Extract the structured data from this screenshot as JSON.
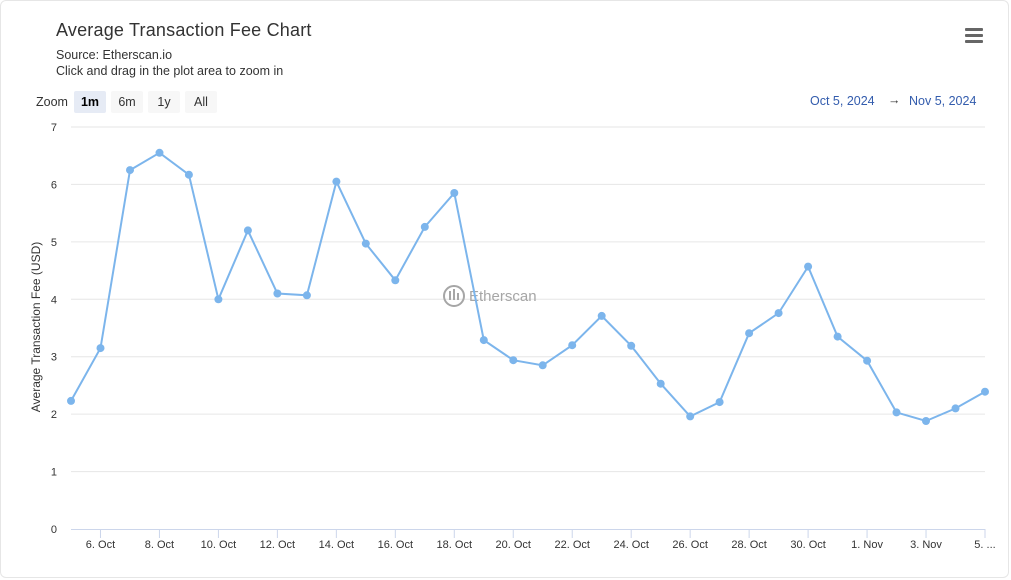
{
  "header": {
    "title": "Average Transaction Fee Chart",
    "source": "Source: Etherscan.io",
    "hint": "Click and drag in the plot area to zoom in"
  },
  "menu_icon": "hamburger-menu-icon",
  "zoom": {
    "label": "Zoom",
    "buttons": [
      "1m",
      "6m",
      "1y",
      "All"
    ],
    "active": "1m"
  },
  "range": {
    "from": "Oct 5, 2024",
    "arrow": "→",
    "to": "Nov 5, 2024"
  },
  "watermark": "Etherscan",
  "colors": {
    "line": "#7cb5ec",
    "grid": "#e6e6e6",
    "range_text": "#335cad"
  },
  "chart_data": {
    "type": "line",
    "ylabel": "Average Transaction Fee (USD)",
    "ylim": [
      0,
      7
    ],
    "yticks": [
      0,
      1,
      2,
      3,
      4,
      5,
      6,
      7
    ],
    "grid": true,
    "xlim": [
      "2024-10-05",
      "2024-11-05"
    ],
    "xtick_labels": [
      "6. Oct",
      "8. Oct",
      "10. Oct",
      "12. Oct",
      "14. Oct",
      "16. Oct",
      "18. Oct",
      "20. Oct",
      "22. Oct",
      "24. Oct",
      "26. Oct",
      "28. Oct",
      "30. Oct",
      "1. Nov",
      "3. Nov",
      "5. ..."
    ],
    "xtick_dates": [
      "2024-10-06",
      "2024-10-08",
      "2024-10-10",
      "2024-10-12",
      "2024-10-14",
      "2024-10-16",
      "2024-10-18",
      "2024-10-20",
      "2024-10-22",
      "2024-10-24",
      "2024-10-26",
      "2024-10-28",
      "2024-10-30",
      "2024-11-01",
      "2024-11-03",
      "2024-11-05"
    ],
    "series": [
      {
        "x": [
          "2024-10-05",
          "2024-10-06",
          "2024-10-07",
          "2024-10-08",
          "2024-10-09",
          "2024-10-10",
          "2024-10-11",
          "2024-10-12",
          "2024-10-13",
          "2024-10-14",
          "2024-10-15",
          "2024-10-16",
          "2024-10-17",
          "2024-10-18",
          "2024-10-19",
          "2024-10-20",
          "2024-10-21",
          "2024-10-22",
          "2024-10-23",
          "2024-10-24",
          "2024-10-25",
          "2024-10-26",
          "2024-10-27",
          "2024-10-28",
          "2024-10-29",
          "2024-10-30",
          "2024-10-31",
          "2024-11-01",
          "2024-11-02",
          "2024-11-03",
          "2024-11-04",
          "2024-11-05"
        ],
        "values": [
          2.23,
          3.15,
          6.25,
          6.55,
          6.17,
          4.0,
          5.2,
          4.1,
          4.07,
          6.05,
          4.97,
          4.33,
          5.26,
          5.85,
          3.29,
          2.94,
          2.85,
          3.2,
          3.71,
          3.19,
          2.53,
          1.96,
          2.21,
          3.41,
          3.76,
          4.57,
          3.35,
          2.93,
          2.03,
          1.88,
          2.1,
          2.39
        ]
      }
    ]
  }
}
